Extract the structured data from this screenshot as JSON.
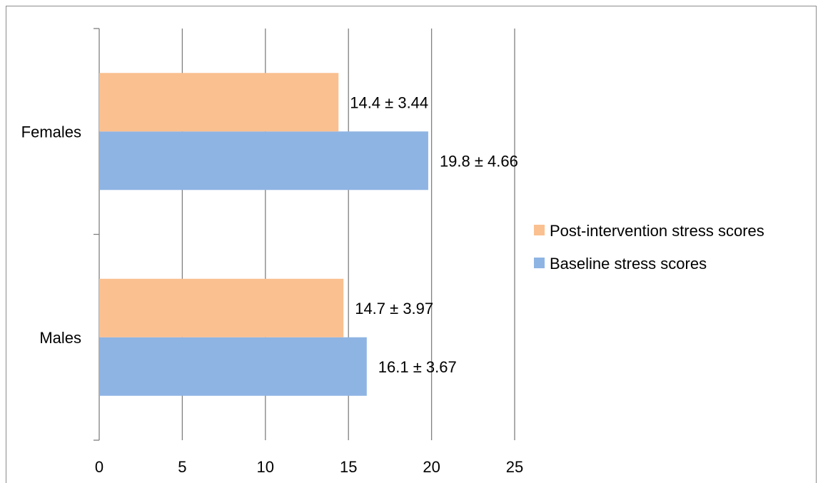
{
  "chart_data": {
    "type": "bar",
    "orientation": "horizontal",
    "categories": [
      "Males",
      "Females"
    ],
    "series": [
      {
        "name": "Baseline stress scores",
        "values": [
          16.1,
          19.8
        ],
        "labels": [
          "16.1 ± 3.67",
          "19.8 ± 4.66"
        ],
        "color": "#8eb4e3"
      },
      {
        "name": "Post-intervention stress scores",
        "values": [
          14.7,
          14.4
        ],
        "labels": [
          "14.7 ±  3.97",
          "14.4 ± 3.44"
        ],
        "color": "#fac090"
      }
    ],
    "xlim": [
      0,
      25
    ],
    "xticks": [
      "0",
      "5",
      "10",
      "15",
      "20",
      "25"
    ],
    "grid": "vertical",
    "legend_position": "right",
    "legend_order": [
      "Post-intervention stress scores",
      "Baseline stress scores"
    ]
  }
}
